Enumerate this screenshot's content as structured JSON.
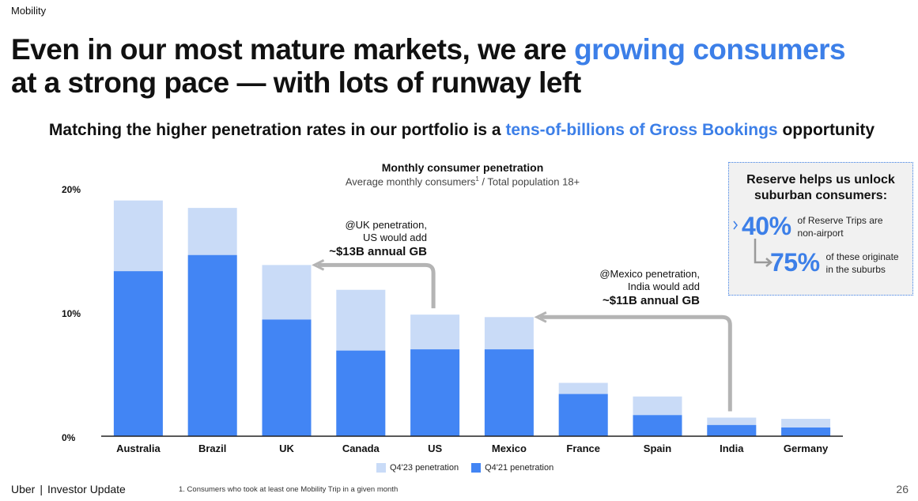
{
  "section_label": "Mobility",
  "headline": {
    "part1": "Even in our most mature markets, we are ",
    "highlight": "growing consumers",
    "part2": "at a strong pace — with lots of runway left"
  },
  "subheadline": {
    "part1": "Matching the higher penetration rates in our portfolio is a ",
    "highlight": "tens-of-billions of Gross Bookings",
    "part2": " opportunity"
  },
  "chart_data": {
    "type": "bar",
    "title": "Monthly consumer penetration",
    "subtitle_pre": "Average monthly consumers",
    "subtitle_sup": "1",
    "subtitle_post": " / Total population 18+",
    "categories": [
      "Australia",
      "Brazil",
      "UK",
      "Canada",
      "US",
      "Mexico",
      "France",
      "Spain",
      "India",
      "Germany"
    ],
    "series": [
      {
        "name": "Q4'23 penetration",
        "values": [
          19.0,
          18.4,
          13.8,
          11.8,
          9.8,
          9.6,
          4.3,
          3.2,
          1.5,
          1.4
        ],
        "color": "#c9dbf7"
      },
      {
        "name": "Q4'21 penetration",
        "values": [
          13.3,
          14.6,
          9.4,
          6.9,
          7.0,
          7.0,
          3.4,
          1.7,
          0.9,
          0.7
        ],
        "color": "#4285f4"
      }
    ],
    "yticks": [
      "0%",
      "10%",
      "20%"
    ],
    "ylim": [
      0,
      20
    ],
    "legend_position": "bottom-center"
  },
  "callouts": [
    {
      "line1": "@UK penetration,",
      "line2": "US would add",
      "line3": "~$13B annual GB"
    },
    {
      "line1": "@Mexico penetration,",
      "line2": "India would add",
      "line3": "~$11B annual GB"
    }
  ],
  "reserve_box": {
    "title_line1": "Reserve helps us unlock",
    "title_line2": "suburban consumers:",
    "stat1_value": "40%",
    "stat1_line1": "of Reserve Trips are",
    "stat1_line2": "non-airport",
    "stat2_value": "75%",
    "stat2_line1": "of these originate",
    "stat2_line2": "in the suburbs"
  },
  "footer": {
    "brand": "Uber",
    "separator": "|",
    "label": "Investor Update",
    "footnote": "1. Consumers who took at least one Mobility Trip in a given month",
    "page_number": "26"
  }
}
